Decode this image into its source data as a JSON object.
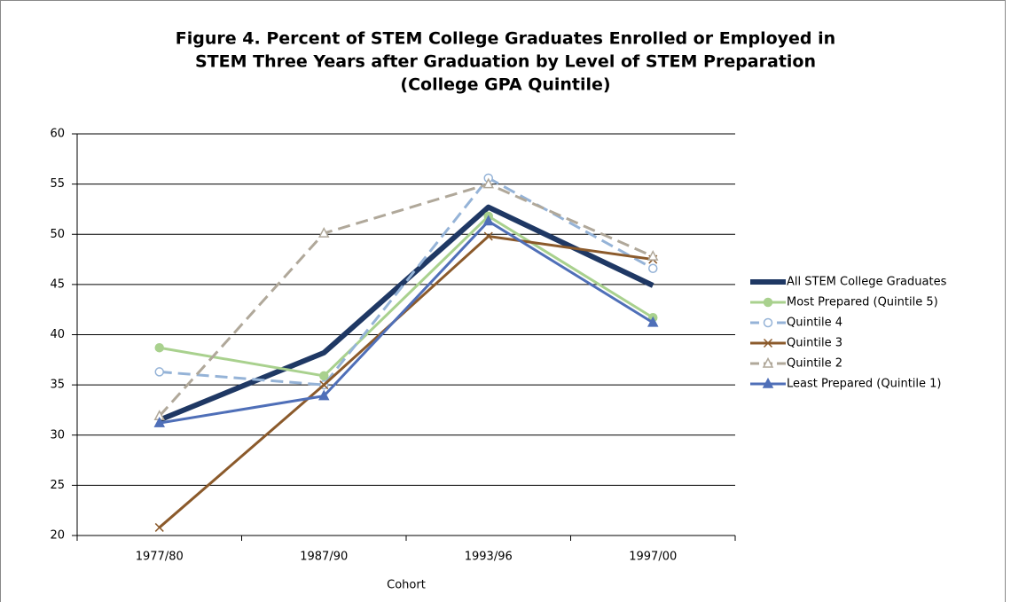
{
  "chart_data": {
    "type": "line",
    "title": [
      "Figure 4. Percent of STEM College Graduates Enrolled or Employed in",
      "STEM Three Years after Graduation by Level of STEM Preparation",
      "(College GPA Quintile)"
    ],
    "x_label": "Cohort",
    "categories": [
      "1977/80",
      "1987/90",
      "1993/96",
      "1997/00"
    ],
    "ylim": [
      20,
      60
    ],
    "yticks": [
      20,
      25,
      30,
      35,
      40,
      45,
      50,
      55,
      60
    ],
    "grid": true,
    "legend": "right",
    "series": [
      {
        "name": "All STEM College Graduates",
        "color": "#1f3864",
        "width": 6,
        "marker": "none",
        "dashed": false,
        "values": [
          31.5,
          38.2,
          52.7,
          44.9
        ]
      },
      {
        "name": "Most Prepared (Quintile 5)",
        "color": "#a9d18e",
        "width": 3,
        "marker": "circle",
        "dashed": false,
        "values": [
          38.7,
          35.9,
          51.8,
          41.7
        ]
      },
      {
        "name": "Quintile 4",
        "color": "#95b3d7",
        "width": 3,
        "marker": "open-circle",
        "dashed": true,
        "values": [
          36.3,
          35.0,
          55.6,
          46.6
        ]
      },
      {
        "name": "Quintile 3",
        "color": "#8b5a2b",
        "width": 3,
        "marker": "x",
        "dashed": false,
        "values": [
          20.8,
          35.0,
          49.8,
          47.5
        ]
      },
      {
        "name": "Quintile 2",
        "color": "#b0a89a",
        "width": 3,
        "marker": "open-triangle",
        "dashed": true,
        "values": [
          31.9,
          50.1,
          55.0,
          47.8
        ]
      },
      {
        "name": "Least Prepared (Quintile 1)",
        "color": "#4f6fb8",
        "width": 3,
        "marker": "triangle",
        "dashed": false,
        "values": [
          31.2,
          33.9,
          51.3,
          41.2
        ]
      }
    ]
  }
}
